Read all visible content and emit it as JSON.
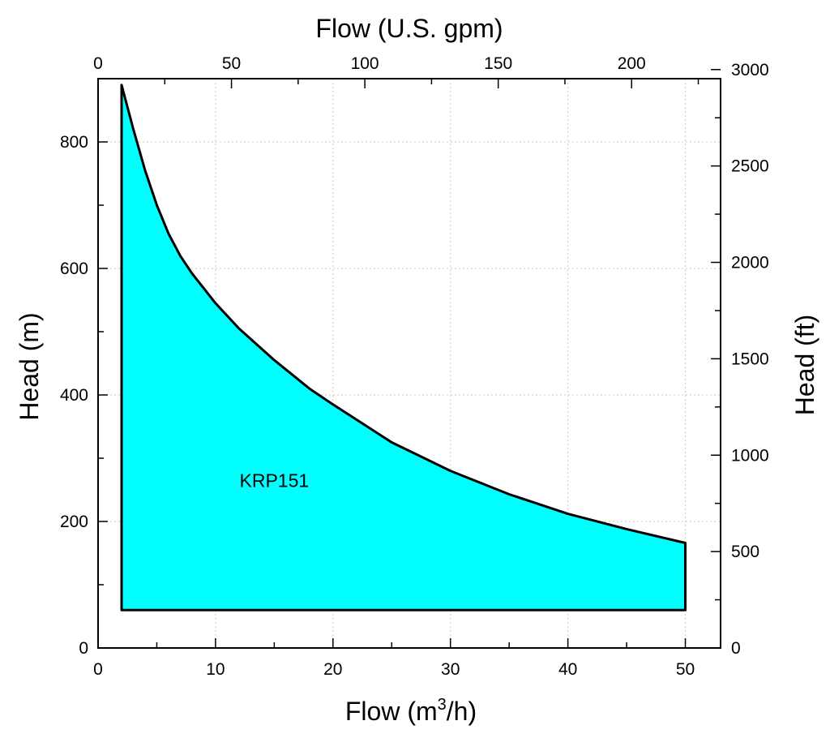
{
  "chart_data": {
    "type": "area",
    "title": "",
    "xlabel_bottom": "Flow (m",
    "xlabel_bottom_sup": "3",
    "xlabel_bottom_suffix": "/h)",
    "xlabel_top": "Flow (U.S. gpm)",
    "ylabel_left": "Head (m)",
    "ylabel_right": "Head (ft)",
    "xlim_m3h": [
      0,
      53
    ],
    "ylim_m": [
      0,
      900
    ],
    "xticks_m3h": [
      "0",
      "10",
      "20",
      "30",
      "40",
      "50"
    ],
    "yticks_m": [
      "0",
      "200",
      "400",
      "600",
      "800"
    ],
    "xticks_gpm": [
      "0",
      "50",
      "100",
      "150",
      "200"
    ],
    "yticks_ft": [
      "0",
      "500",
      "1000",
      "1500",
      "2000",
      "2500",
      "3000"
    ],
    "grid": true,
    "fill_color": "#00ffff",
    "series": [
      {
        "name": "KRP151",
        "upper_boundary": [
          {
            "x": 2.0,
            "y": 890
          },
          {
            "x": 3.0,
            "y": 820
          },
          {
            "x": 4.0,
            "y": 755
          },
          {
            "x": 5.0,
            "y": 700
          },
          {
            "x": 6.0,
            "y": 655
          },
          {
            "x": 7.0,
            "y": 620
          },
          {
            "x": 8.0,
            "y": 592
          },
          {
            "x": 10.0,
            "y": 545
          },
          {
            "x": 12.0,
            "y": 505
          },
          {
            "x": 15.0,
            "y": 455
          },
          {
            "x": 18.0,
            "y": 410
          },
          {
            "x": 20.0,
            "y": 385
          },
          {
            "x": 25.0,
            "y": 325
          },
          {
            "x": 30.0,
            "y": 280
          },
          {
            "x": 35.0,
            "y": 243
          },
          {
            "x": 40.0,
            "y": 212
          },
          {
            "x": 45.0,
            "y": 188
          },
          {
            "x": 50.0,
            "y": 166
          }
        ],
        "lower_boundary": [
          {
            "x": 2.0,
            "y": 60
          },
          {
            "x": 50.0,
            "y": 60
          }
        ]
      }
    ],
    "annotations": [
      {
        "text": "KRP151",
        "x": 15.0,
        "y": 265
      }
    ]
  }
}
